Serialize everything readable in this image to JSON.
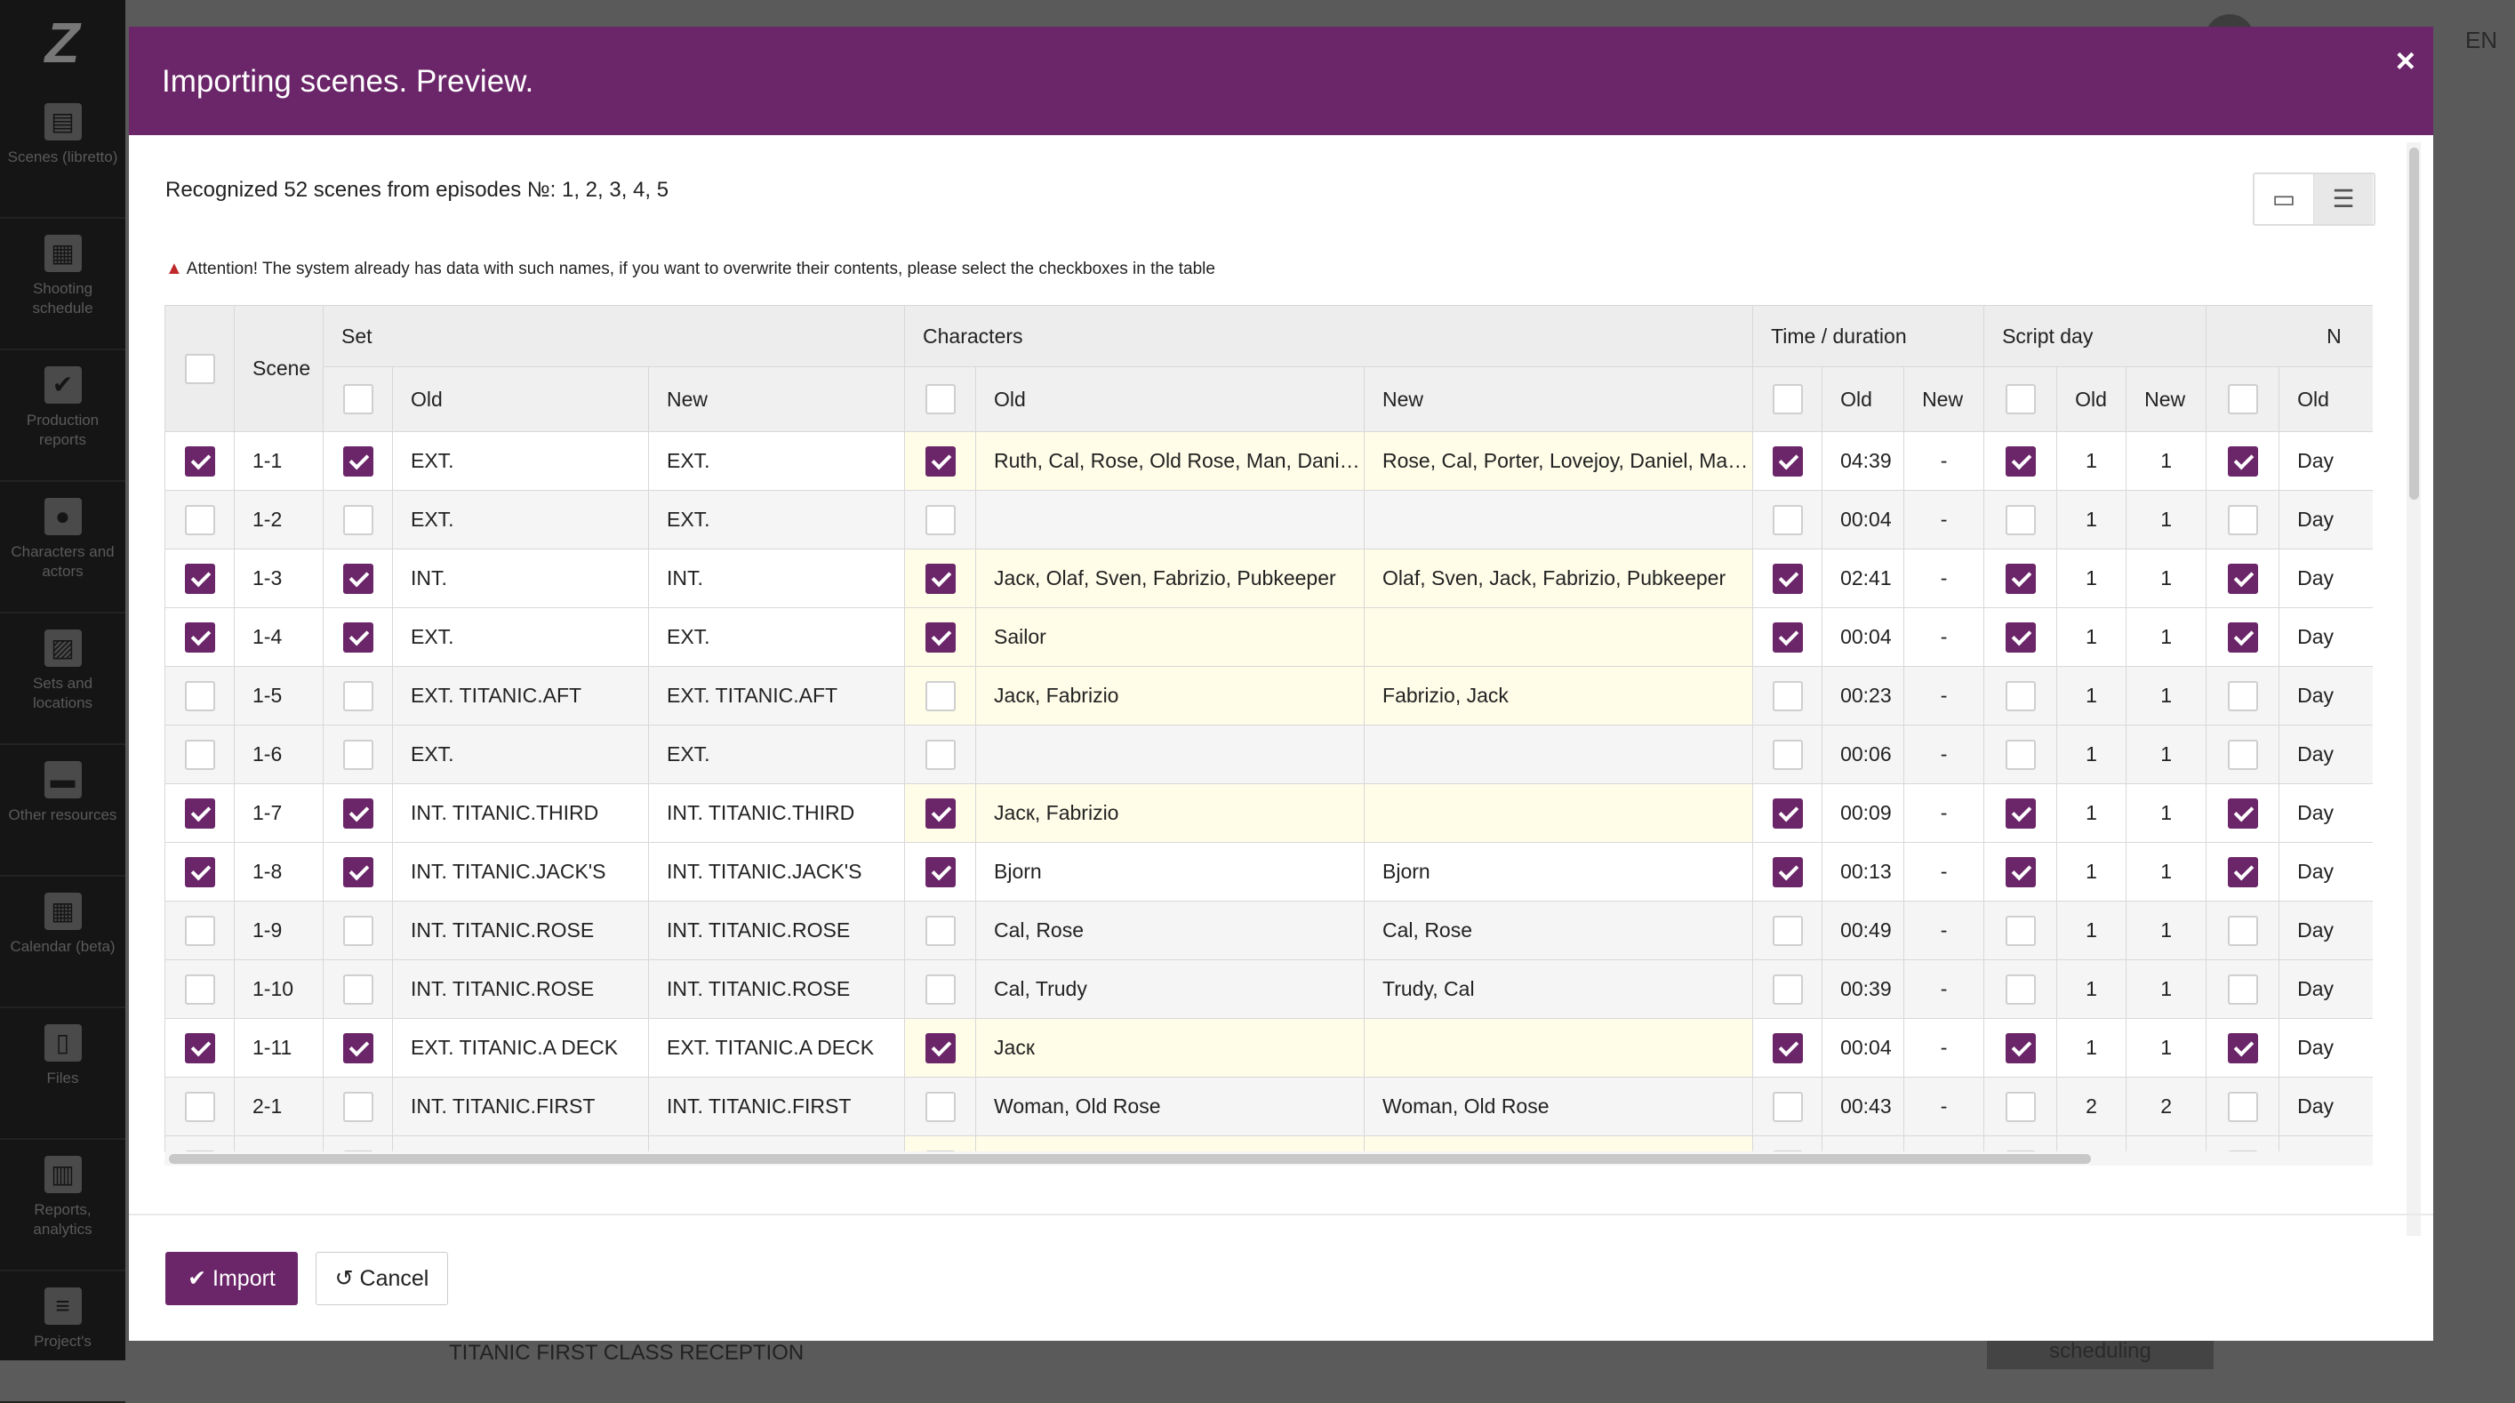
{
  "sidebar": {
    "items": [
      {
        "label": "Scenes (libretto)",
        "icon": "clapperboard-icon"
      },
      {
        "label": "Shooting schedule",
        "icon": "calendar-icon"
      },
      {
        "label": "Production reports",
        "icon": "checkbox-icon"
      },
      {
        "label": "Characters and actors",
        "icon": "people-icon"
      },
      {
        "label": "Sets and locations",
        "icon": "image-icon"
      },
      {
        "label": "Other resources",
        "icon": "box-icon"
      },
      {
        "label": "Calendar (beta)",
        "icon": "calendar-grid-icon"
      },
      {
        "label": "Files",
        "icon": "file-icon"
      },
      {
        "label": "Reports, analytics",
        "icon": "chart-icon"
      },
      {
        "label": "Project's",
        "icon": "sliders-icon"
      }
    ]
  },
  "background": {
    "lang": "EN",
    "footer_text": "TITANIC FIRST CLASS RECEPTION",
    "footer_button": "scheduling"
  },
  "modal": {
    "title": "Importing scenes. Preview.",
    "close_icon": "×",
    "recognized_text": "Recognized 52 scenes from episodes №: 1, 2, 3, 4, 5",
    "attention_text": "Attention! The system already has data with such names, if you want to overwrite their contents, please select the checkboxes in the table",
    "import_label": "Import",
    "cancel_label": "Cancel"
  },
  "table": {
    "group_headers": {
      "scene": "Scene",
      "set": "Set",
      "characters": "Characters",
      "time": "Time / duration",
      "script_day": "Script day",
      "next": "N"
    },
    "sub_headers": {
      "old": "Old",
      "new": "New"
    },
    "rows": [
      {
        "check": true,
        "scene": "1-1",
        "set_check": true,
        "set_old": "EXT.",
        "set_new": "EXT.",
        "char_check": true,
        "char_old": "Ruth, Cal, Rose, Old Rose, Man, Daniel, Porter, Lovejoy",
        "char_new": "Rose, Cal, Porter, Lovejoy, Daniel, Man, Old Rose, Ruth",
        "char_diff": true,
        "time_check": true,
        "time_old": "04:39",
        "time_new": "-",
        "day_check": true,
        "day_old": "1",
        "day_new": "1",
        "next_check": true,
        "next_old": "Day"
      },
      {
        "check": false,
        "scene": "1-2",
        "set_check": false,
        "set_old": "EXT.",
        "set_new": "EXT.",
        "char_check": false,
        "char_old": "",
        "char_new": "",
        "char_diff": false,
        "time_check": false,
        "time_old": "00:04",
        "time_new": "-",
        "day_check": false,
        "day_old": "1",
        "day_new": "1",
        "next_check": false,
        "next_old": "Day"
      },
      {
        "check": true,
        "scene": "1-3",
        "set_check": true,
        "set_old": "INT.",
        "set_new": "INT.",
        "char_check": true,
        "char_old": "Jacк, Olaf, Sven, Fabrizio, Pubkeeper",
        "char_new": "Olaf, Sven, Jack, Fabrizio, Pubkeeper",
        "char_diff": true,
        "time_check": true,
        "time_old": "02:41",
        "time_new": "-",
        "day_check": true,
        "day_old": "1",
        "day_new": "1",
        "next_check": true,
        "next_old": "Day"
      },
      {
        "check": true,
        "scene": "1-4",
        "set_check": true,
        "set_old": "EXT.",
        "set_new": "EXT.",
        "char_check": true,
        "char_old": "Sailor",
        "char_new": "",
        "char_diff": true,
        "time_check": true,
        "time_old": "00:04",
        "time_new": "-",
        "day_check": true,
        "day_old": "1",
        "day_new": "1",
        "next_check": true,
        "next_old": "Day"
      },
      {
        "check": false,
        "scene": "1-5",
        "set_check": false,
        "set_old": "EXT. TITANIC.AFT",
        "set_new": "EXT. TITANIC.AFT",
        "char_check": false,
        "char_old": "Jacк, Fabrizio",
        "char_new": "Fabrizio, Jack",
        "char_diff": true,
        "time_check": false,
        "time_old": "00:23",
        "time_new": "-",
        "day_check": false,
        "day_old": "1",
        "day_new": "1",
        "next_check": false,
        "next_old": "Day"
      },
      {
        "check": false,
        "scene": "1-6",
        "set_check": false,
        "set_old": "EXT.",
        "set_new": "EXT.",
        "char_check": false,
        "char_old": "",
        "char_new": "",
        "char_diff": false,
        "time_check": false,
        "time_old": "00:06",
        "time_new": "-",
        "day_check": false,
        "day_old": "1",
        "day_new": "1",
        "next_check": false,
        "next_old": "Day"
      },
      {
        "check": true,
        "scene": "1-7",
        "set_check": true,
        "set_old": "INT. TITANIC.THIRD",
        "set_new": "INT. TITANIC.THIRD",
        "char_check": true,
        "char_old": "Jacк, Fabrizio",
        "char_new": "",
        "char_diff": true,
        "time_check": true,
        "time_old": "00:09",
        "time_new": "-",
        "day_check": true,
        "day_old": "1",
        "day_new": "1",
        "next_check": true,
        "next_old": "Day"
      },
      {
        "check": true,
        "scene": "1-8",
        "set_check": true,
        "set_old": "INT. TITANIC.JACK'S",
        "set_new": "INT. TITANIC.JACK'S",
        "char_check": true,
        "char_old": "Bjorn",
        "char_new": "Bjorn",
        "char_diff": false,
        "time_check": true,
        "time_old": "00:13",
        "time_new": "-",
        "day_check": true,
        "day_old": "1",
        "day_new": "1",
        "next_check": true,
        "next_old": "Day"
      },
      {
        "check": false,
        "scene": "1-9",
        "set_check": false,
        "set_old": "INT. TITANIC.ROSE",
        "set_new": "INT. TITANIC.ROSE",
        "char_check": false,
        "char_old": "Cal, Rose",
        "char_new": "Cal, Rose",
        "char_diff": false,
        "time_check": false,
        "time_old": "00:49",
        "time_new": "-",
        "day_check": false,
        "day_old": "1",
        "day_new": "1",
        "next_check": false,
        "next_old": "Day"
      },
      {
        "check": false,
        "scene": "1-10",
        "set_check": false,
        "set_old": "INT. TITANIC.ROSE",
        "set_new": "INT. TITANIC.ROSE",
        "char_check": false,
        "char_old": "Cal, Trudy",
        "char_new": "Trudy, Cal",
        "char_diff": false,
        "time_check": false,
        "time_old": "00:39",
        "time_new": "-",
        "day_check": false,
        "day_old": "1",
        "day_new": "1",
        "next_check": false,
        "next_old": "Day"
      },
      {
        "check": true,
        "scene": "1-11",
        "set_check": true,
        "set_old": "EXT. TITANIC.A DECK",
        "set_new": "EXT. TITANIC.A DECK",
        "char_check": true,
        "char_old": "Jacк",
        "char_new": "",
        "char_diff": true,
        "time_check": true,
        "time_old": "00:04",
        "time_new": "-",
        "day_check": true,
        "day_old": "1",
        "day_new": "1",
        "next_check": true,
        "next_old": "Day"
      },
      {
        "check": false,
        "scene": "2-1",
        "set_check": false,
        "set_old": "INT. TITANIC.FIRST",
        "set_new": "INT. TITANIC.FIRST",
        "char_check": false,
        "char_old": "Woman, Old Rose",
        "char_new": "Woman, Old Rose",
        "char_diff": false,
        "time_check": false,
        "time_old": "00:43",
        "time_new": "-",
        "day_check": false,
        "day_old": "2",
        "day_new": "2",
        "next_check": false,
        "next_old": "Day"
      },
      {
        "check": false,
        "scene": "",
        "set_check": false,
        "set_old": "",
        "set_new": "",
        "char_check": false,
        "char_old": "",
        "char_new": "",
        "char_diff": true,
        "time_check": false,
        "time_old": "",
        "time_new": "",
        "day_check": false,
        "day_old": "",
        "day_new": "",
        "next_check": false,
        "next_old": ""
      }
    ]
  }
}
